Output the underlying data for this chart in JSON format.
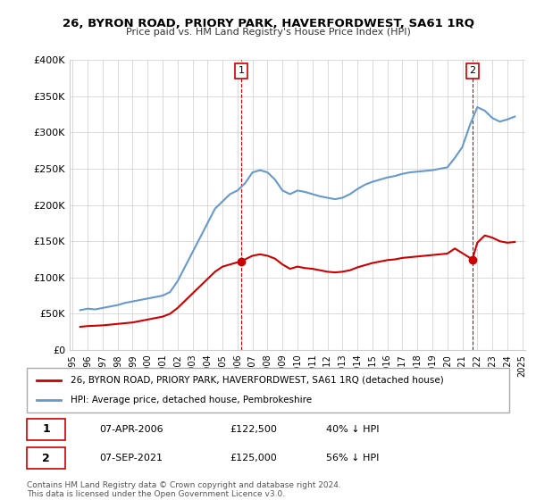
{
  "title": "26, BYRON ROAD, PRIORY PARK, HAVERFORDWEST, SA61 1RQ",
  "subtitle": "Price paid vs. HM Land Registry's House Price Index (HPI)",
  "ylabel": "",
  "xlabel": "",
  "background_color": "#ffffff",
  "grid_color": "#cccccc",
  "hpi_color": "#6699cc",
  "price_color": "#cc0000",
  "ylim": [
    0,
    400000
  ],
  "yticks": [
    0,
    50000,
    100000,
    150000,
    200000,
    250000,
    300000,
    350000,
    400000
  ],
  "ytick_labels": [
    "£0",
    "£50K",
    "£100K",
    "£150K",
    "£200K",
    "£250K",
    "£300K",
    "£350K",
    "£400K"
  ],
  "legend_price_label": "26, BYRON ROAD, PRIORY PARK, HAVERFORDWEST, SA61 1RQ (detached house)",
  "legend_hpi_label": "HPI: Average price, detached house, Pembrokeshire",
  "annotation1_label": "1",
  "annotation1_date": "07-APR-2006",
  "annotation1_price": "£122,500",
  "annotation1_hpi": "40% ↓ HPI",
  "annotation2_label": "2",
  "annotation2_date": "07-SEP-2021",
  "annotation2_price": "£125,000",
  "annotation2_hpi": "56% ↓ HPI",
  "footer": "Contains HM Land Registry data © Crown copyright and database right 2024.\nThis data is licensed under the Open Government Licence v3.0.",
  "hpi_x": [
    1995.5,
    1996.0,
    1996.5,
    1997.0,
    1997.5,
    1998.0,
    1998.5,
    1999.0,
    1999.5,
    2000.0,
    2000.5,
    2001.0,
    2001.5,
    2002.0,
    2002.5,
    2003.0,
    2003.5,
    2004.0,
    2004.5,
    2005.0,
    2005.5,
    2006.0,
    2006.5,
    2007.0,
    2007.5,
    2008.0,
    2008.5,
    2009.0,
    2009.5,
    2010.0,
    2010.5,
    2011.0,
    2011.5,
    2012.0,
    2012.5,
    2013.0,
    2013.5,
    2014.0,
    2014.5,
    2015.0,
    2015.5,
    2016.0,
    2016.5,
    2017.0,
    2017.5,
    2018.0,
    2018.5,
    2019.0,
    2019.5,
    2020.0,
    2020.5,
    2021.0,
    2021.5,
    2022.0,
    2022.5,
    2023.0,
    2023.5,
    2024.0,
    2024.5
  ],
  "hpi_y": [
    55000,
    57000,
    56000,
    58000,
    60000,
    62000,
    65000,
    67000,
    69000,
    71000,
    73000,
    75000,
    80000,
    95000,
    115000,
    135000,
    155000,
    175000,
    195000,
    205000,
    215000,
    220000,
    230000,
    245000,
    248000,
    245000,
    235000,
    220000,
    215000,
    220000,
    218000,
    215000,
    212000,
    210000,
    208000,
    210000,
    215000,
    222000,
    228000,
    232000,
    235000,
    238000,
    240000,
    243000,
    245000,
    246000,
    247000,
    248000,
    250000,
    252000,
    265000,
    280000,
    310000,
    335000,
    330000,
    320000,
    315000,
    318000,
    322000
  ],
  "price_x": [
    1995.5,
    1996.0,
    1996.5,
    1997.0,
    1997.5,
    1998.0,
    1998.5,
    1999.0,
    1999.5,
    2000.0,
    2000.5,
    2001.0,
    2001.5,
    2002.0,
    2002.5,
    2003.0,
    2003.5,
    2004.0,
    2004.5,
    2005.0,
    2005.5,
    2006.25,
    2006.5,
    2007.0,
    2007.5,
    2008.0,
    2008.5,
    2009.0,
    2009.5,
    2010.0,
    2010.5,
    2011.0,
    2011.5,
    2012.0,
    2012.5,
    2013.0,
    2013.5,
    2014.0,
    2014.5,
    2015.0,
    2015.5,
    2016.0,
    2016.5,
    2017.0,
    2017.5,
    2018.0,
    2018.5,
    2019.0,
    2019.5,
    2020.0,
    2020.5,
    2021.67,
    2022.0,
    2022.5,
    2023.0,
    2023.5,
    2024.0,
    2024.5
  ],
  "price_y": [
    32000,
    33000,
    33500,
    34000,
    35000,
    36000,
    37000,
    38000,
    40000,
    42000,
    44000,
    46000,
    50000,
    58000,
    68000,
    78000,
    88000,
    98000,
    108000,
    115000,
    118000,
    122500,
    125000,
    130000,
    132000,
    130000,
    126000,
    118000,
    112000,
    115000,
    113000,
    112000,
    110000,
    108000,
    107000,
    108000,
    110000,
    114000,
    117000,
    120000,
    122000,
    124000,
    125000,
    127000,
    128000,
    129000,
    130000,
    131000,
    132000,
    133000,
    140000,
    125000,
    148000,
    158000,
    155000,
    150000,
    148000,
    149000
  ],
  "sale1_x": 2006.25,
  "sale1_y": 122500,
  "sale2_x": 2021.67,
  "sale2_y": 125000,
  "vline1_x": 2006.25,
  "vline2_x": 2021.67,
  "xlim_left": 1994.8,
  "xlim_right": 2025.2,
  "xticks": [
    1995,
    1996,
    1997,
    1998,
    1999,
    2000,
    2001,
    2002,
    2003,
    2004,
    2005,
    2006,
    2007,
    2008,
    2009,
    2010,
    2011,
    2012,
    2013,
    2014,
    2015,
    2016,
    2017,
    2018,
    2019,
    2020,
    2021,
    2022,
    2023,
    2024,
    2025
  ]
}
